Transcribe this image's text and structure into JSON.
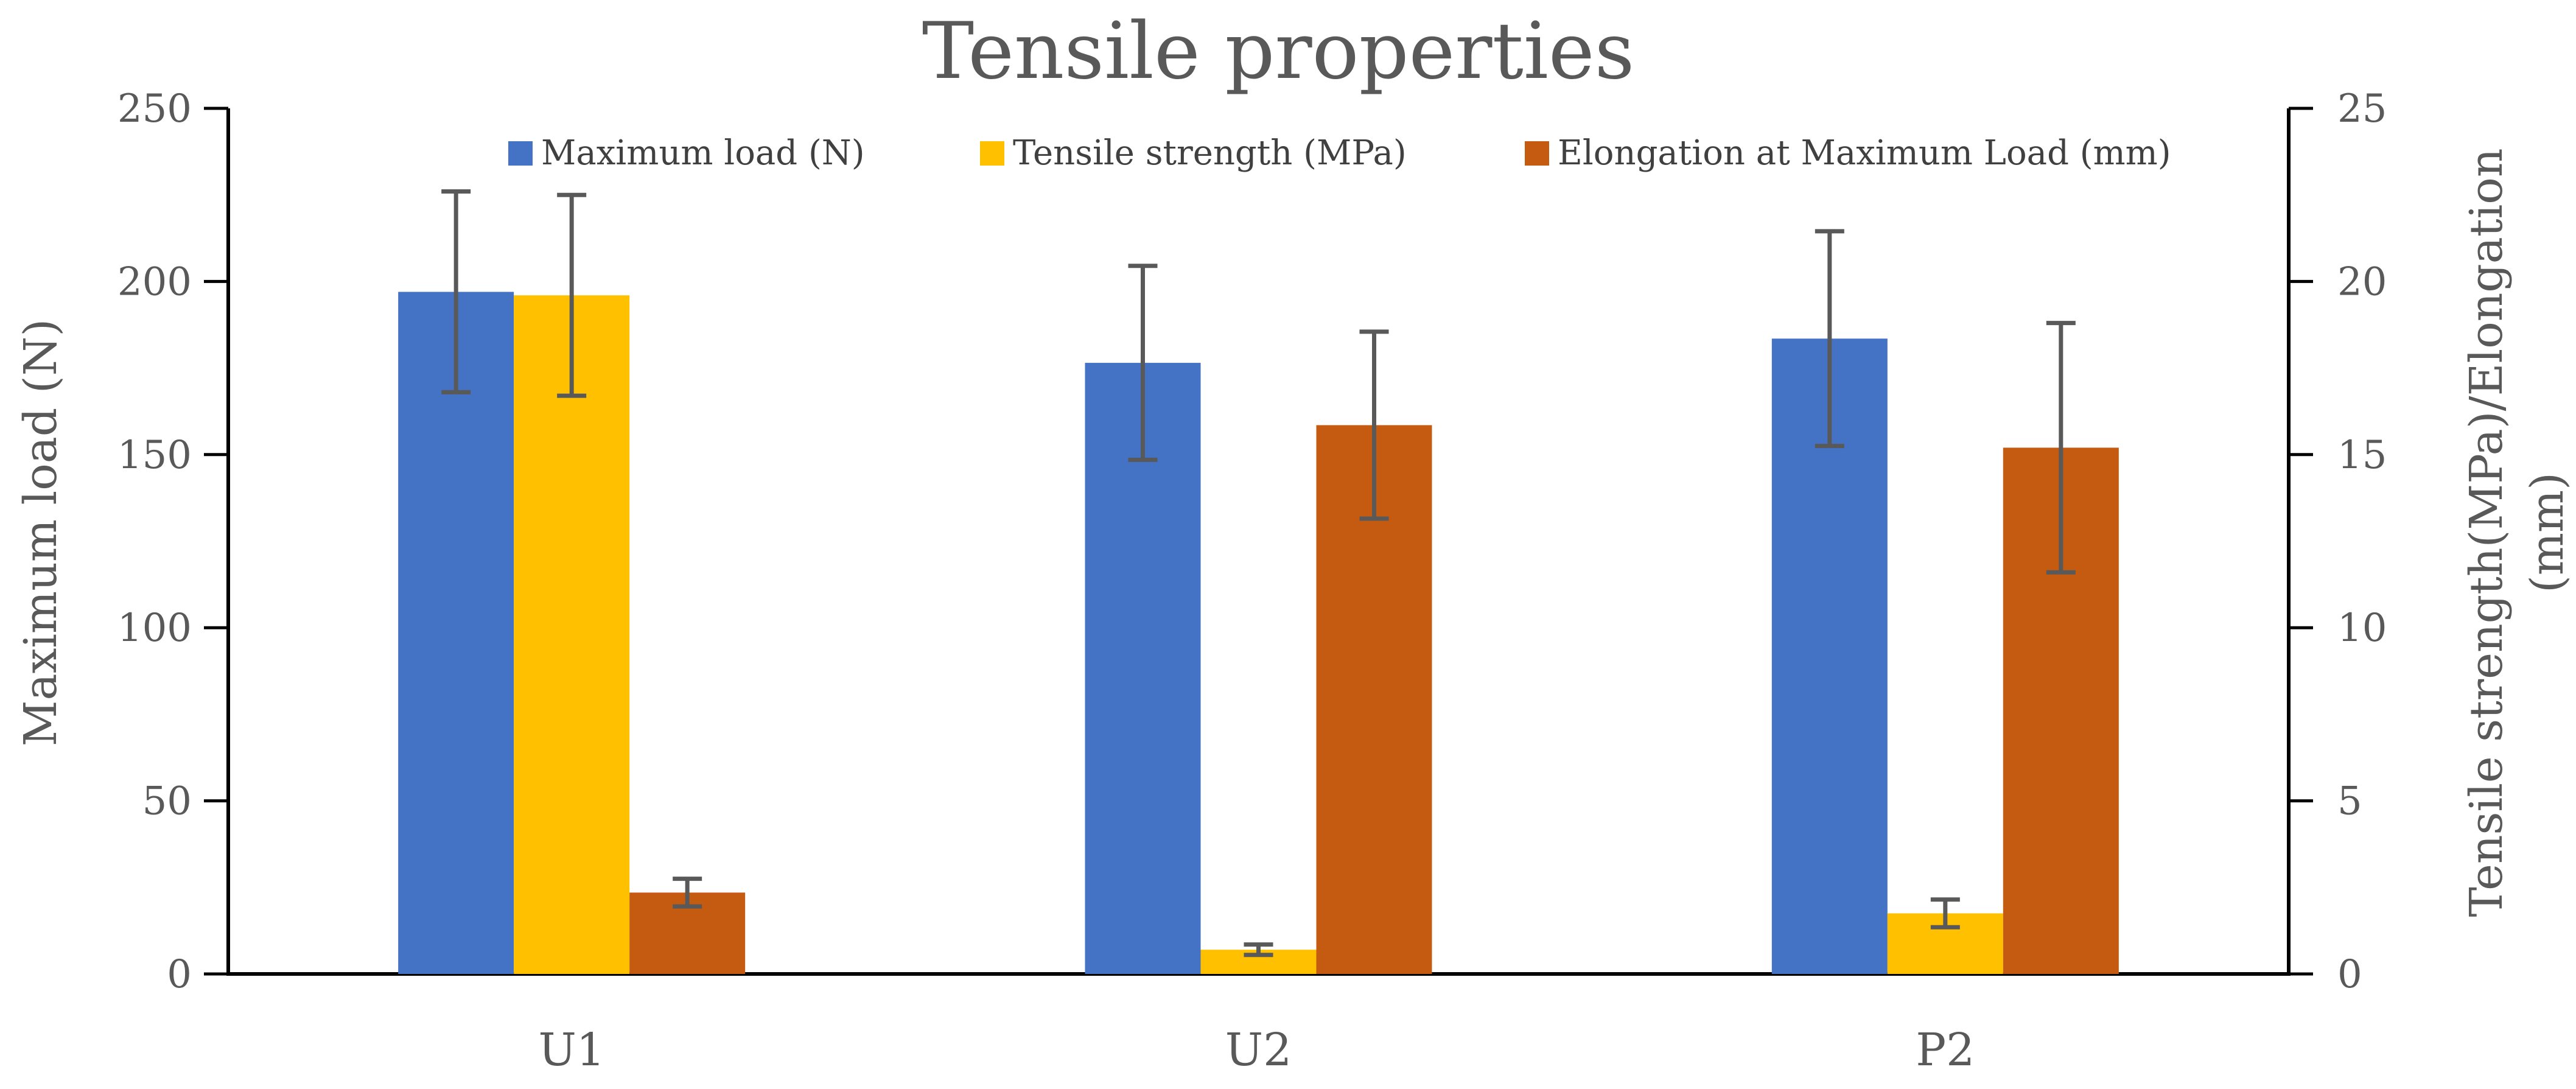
{
  "chart_data": {
    "type": "bar",
    "title": "Tensile properties",
    "xlabel": "",
    "ylabel": "Maximum load (N)",
    "y2label_lines": [
      "Tensile strength(MPa)/Elongation",
      "(mm)"
    ],
    "ylim": [
      0,
      250
    ],
    "y2lim": [
      0,
      25
    ],
    "yticks": [
      "0",
      "50",
      "100",
      "150",
      "200",
      "250"
    ],
    "y2ticks": [
      "0",
      "5",
      "10",
      "15",
      "20",
      "25"
    ],
    "categories": [
      "U1",
      "U2",
      "P2"
    ],
    "legend_position": "top-right",
    "series": [
      {
        "name": "Maximum load (N)",
        "axis": "left",
        "color": "#4472C4",
        "values": [
          197,
          176.5,
          183.5
        ],
        "errors": [
          29,
          28,
          31
        ]
      },
      {
        "name": "Tensile strength (MPa)",
        "axis": "right",
        "color": "#FFC000",
        "values": [
          19.6,
          0.7,
          1.75
        ],
        "errors": [
          2.9,
          0.15,
          0.4
        ]
      },
      {
        "name": "Elongation at Maximum Load (mm)",
        "axis": "right",
        "color": "#C55A11",
        "values": [
          2.35,
          15.85,
          15.2
        ],
        "errors": [
          0.4,
          2.7,
          3.6
        ]
      }
    ]
  }
}
